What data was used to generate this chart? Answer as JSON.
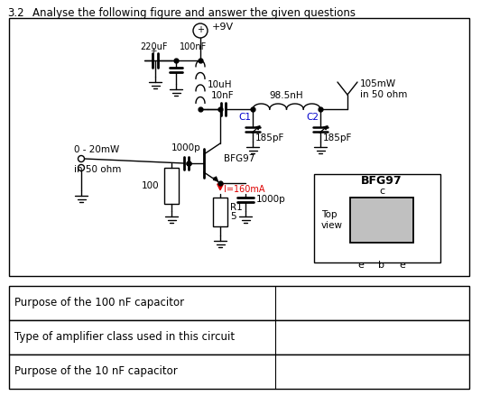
{
  "title_num": "3.2",
  "title_text": "Analyse the following figure and answer the given questions",
  "table_rows": [
    "Purpose of the 100 nF capacitor",
    "Type of amplifier class used in this circuit",
    "Purpose of the 10 nF capacitor"
  ],
  "colors": {
    "black": "#000000",
    "blue": "#0000cc",
    "red": "#dd0000",
    "white": "#ffffff",
    "lgray": "#c0c0c0"
  }
}
